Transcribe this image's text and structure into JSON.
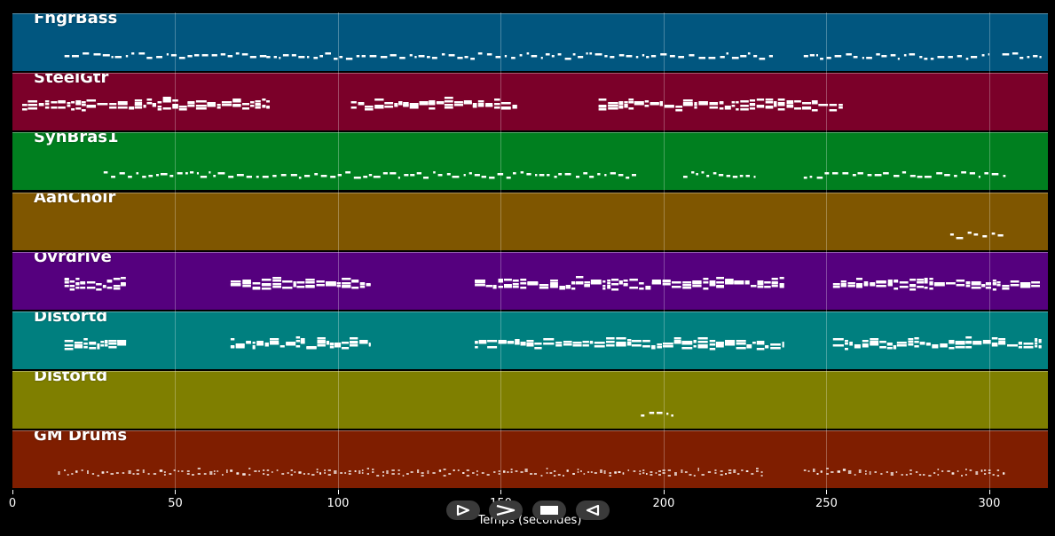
{
  "chart_data": {
    "type": "piano-roll",
    "xlabel": "Temps (secondes)",
    "xlim": [
      0,
      318
    ],
    "xticks": [
      0,
      50,
      100,
      150,
      200,
      250,
      300
    ],
    "grid": true,
    "tracks": [
      {
        "name": "FngrBass",
        "color": "#01567f",
        "segments": [
          [
            16,
            78
          ],
          [
            78,
            234
          ],
          [
            243,
            300
          ],
          [
            304,
            316
          ]
        ],
        "density": "sparse"
      },
      {
        "name": "SteelGtr",
        "color": "#7b0029",
        "segments": [
          [
            3,
            79
          ],
          [
            104,
            155
          ],
          [
            180,
            255
          ]
        ],
        "density": "dense"
      },
      {
        "name": "SynBras1",
        "color": "#007f1f",
        "segments": [
          [
            28,
            192
          ],
          [
            206,
            229
          ],
          [
            243,
            305
          ]
        ],
        "density": "sparse"
      },
      {
        "name": "AahChoir",
        "color": "#7f5600",
        "segments": [
          [
            288,
            305
          ]
        ],
        "density": "sparse"
      },
      {
        "name": "Ovrdrive",
        "color": "#55007e",
        "segments": [
          [
            16,
            35
          ],
          [
            67,
            110
          ],
          [
            142,
            237
          ],
          [
            252,
            316
          ]
        ],
        "density": "dense"
      },
      {
        "name": "Distortd",
        "color": "#007f7f",
        "segments": [
          [
            16,
            35
          ],
          [
            67,
            110
          ],
          [
            142,
            237
          ],
          [
            252,
            316
          ]
        ],
        "density": "dense"
      },
      {
        "name": "Distortd",
        "color": "#7f7f00",
        "segments": [
          [
            193,
            203
          ]
        ],
        "density": "sparse"
      },
      {
        "name": "GM Drums",
        "color": "#7f1e00",
        "segments": [
          [
            14,
            231
          ],
          [
            243,
            305
          ]
        ],
        "density": "drums"
      }
    ]
  },
  "playback": {
    "controls": [
      {
        "name": "play-button",
        "icon": "play-outline-icon"
      },
      {
        "name": "forward-button",
        "icon": "chevron-right-icon"
      },
      {
        "name": "stop-button",
        "icon": "stop-square-icon"
      },
      {
        "name": "back-button",
        "icon": "triangle-left-outline-icon"
      }
    ]
  }
}
